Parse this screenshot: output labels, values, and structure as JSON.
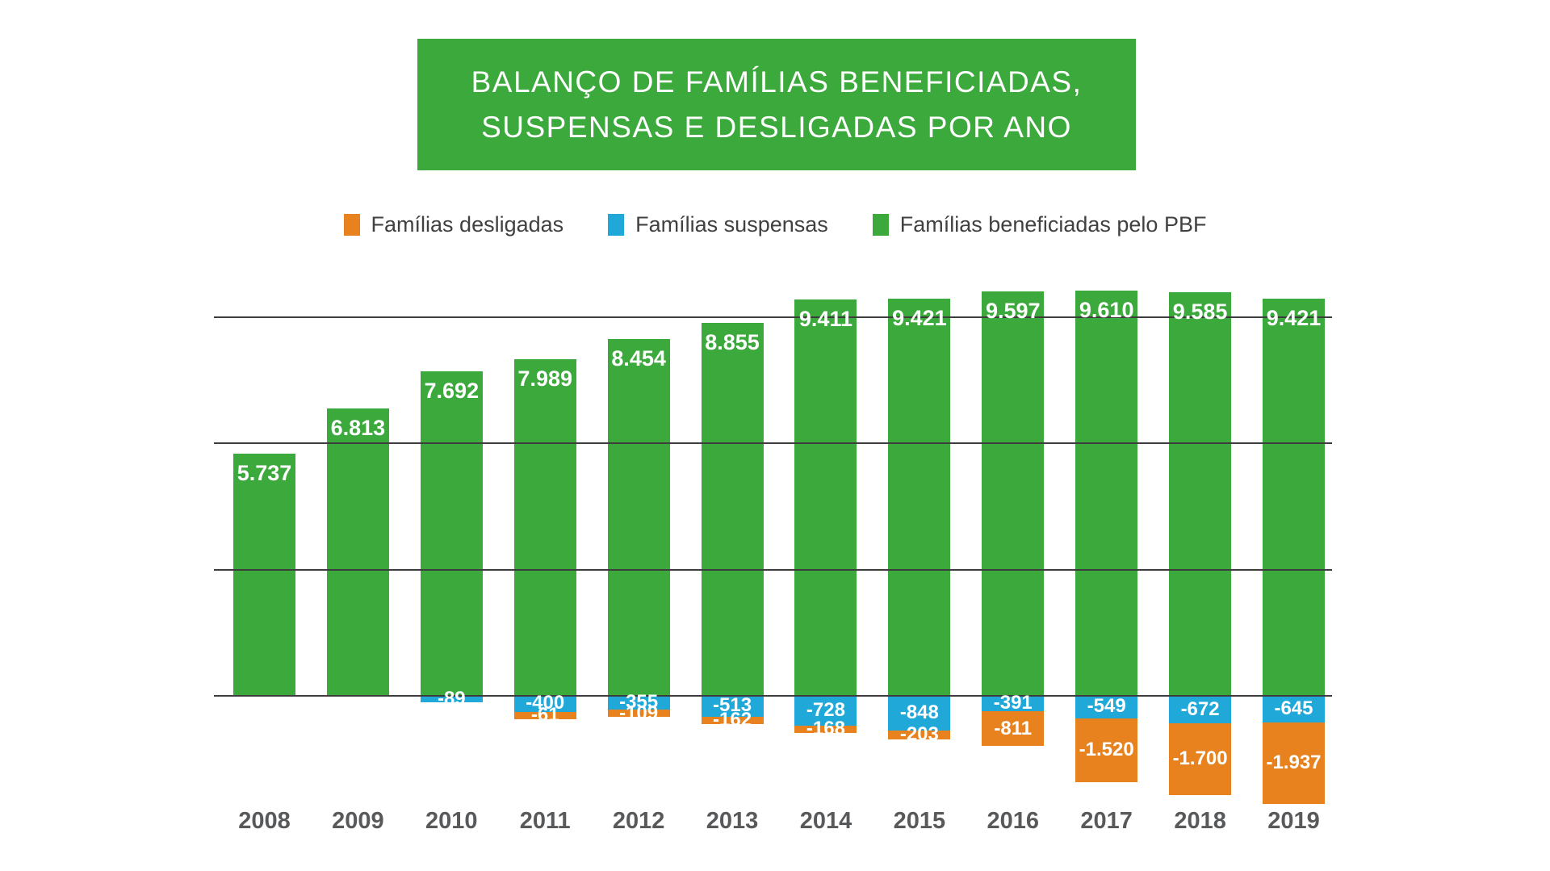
{
  "title": {
    "line1": "BALANÇO DE FAMÍLIAS BENEFICIADAS,",
    "line2": "SUSPENSAS E DESLIGADAS POR ANO"
  },
  "colors": {
    "title_bg": "#3CA93C",
    "grid_line": "#3d3d3d",
    "year_label_text": "#58595b",
    "legend_text": "#414042",
    "value_label_text": "#ffffff"
  },
  "chart_data": {
    "type": "bar",
    "title": "BALANÇO DE FAMÍLIAS BENEFICIADAS, SUSPENSAS E DESLIGADAS POR ANO",
    "categories": [
      "2008",
      "2009",
      "2010",
      "2011",
      "2012",
      "2013",
      "2014",
      "2015",
      "2016",
      "2017",
      "2018",
      "2019"
    ],
    "series": [
      {
        "name": "Famílias desligadas",
        "color": "#E8821E",
        "values": [
          null,
          null,
          null,
          -61,
          -109,
          -162,
          -168,
          -203,
          -811,
          -1520,
          -1700,
          -1937
        ],
        "labels": [
          null,
          null,
          null,
          "-61",
          "-109",
          "-162",
          "-168",
          "-203",
          "-811",
          "-1.520",
          "-1.700",
          "-1.937"
        ]
      },
      {
        "name": "Famílias suspensas",
        "color": "#1FA8D8",
        "values": [
          null,
          null,
          -89,
          -400,
          -355,
          -513,
          -728,
          -848,
          -391,
          -549,
          -672,
          -645
        ],
        "labels": [
          null,
          null,
          "-89",
          "-400",
          "-355",
          "-513",
          "-728",
          "-848",
          "-391",
          "-549",
          "-672",
          "-645"
        ]
      },
      {
        "name": "Famílias beneficiadas pelo PBF",
        "color": "#3CA93C",
        "values": [
          5737,
          6813,
          7692,
          7989,
          8454,
          8855,
          9411,
          9421,
          9597,
          9610,
          9585,
          9421
        ],
        "labels": [
          "5.737",
          "6.813",
          "7.692",
          "7.989",
          "8.454",
          "8.855",
          "9.411",
          "9.421",
          "9.597",
          "9.610",
          "9.585",
          "9.421"
        ]
      }
    ],
    "layout": {
      "legend_position": "top",
      "grid": true,
      "gridline_step_value": 3000,
      "gridline_count": 4,
      "ylim": [
        -3000,
        9610
      ],
      "xlabel": "",
      "ylabel": "",
      "y_axis_labels_visible": false
    }
  }
}
